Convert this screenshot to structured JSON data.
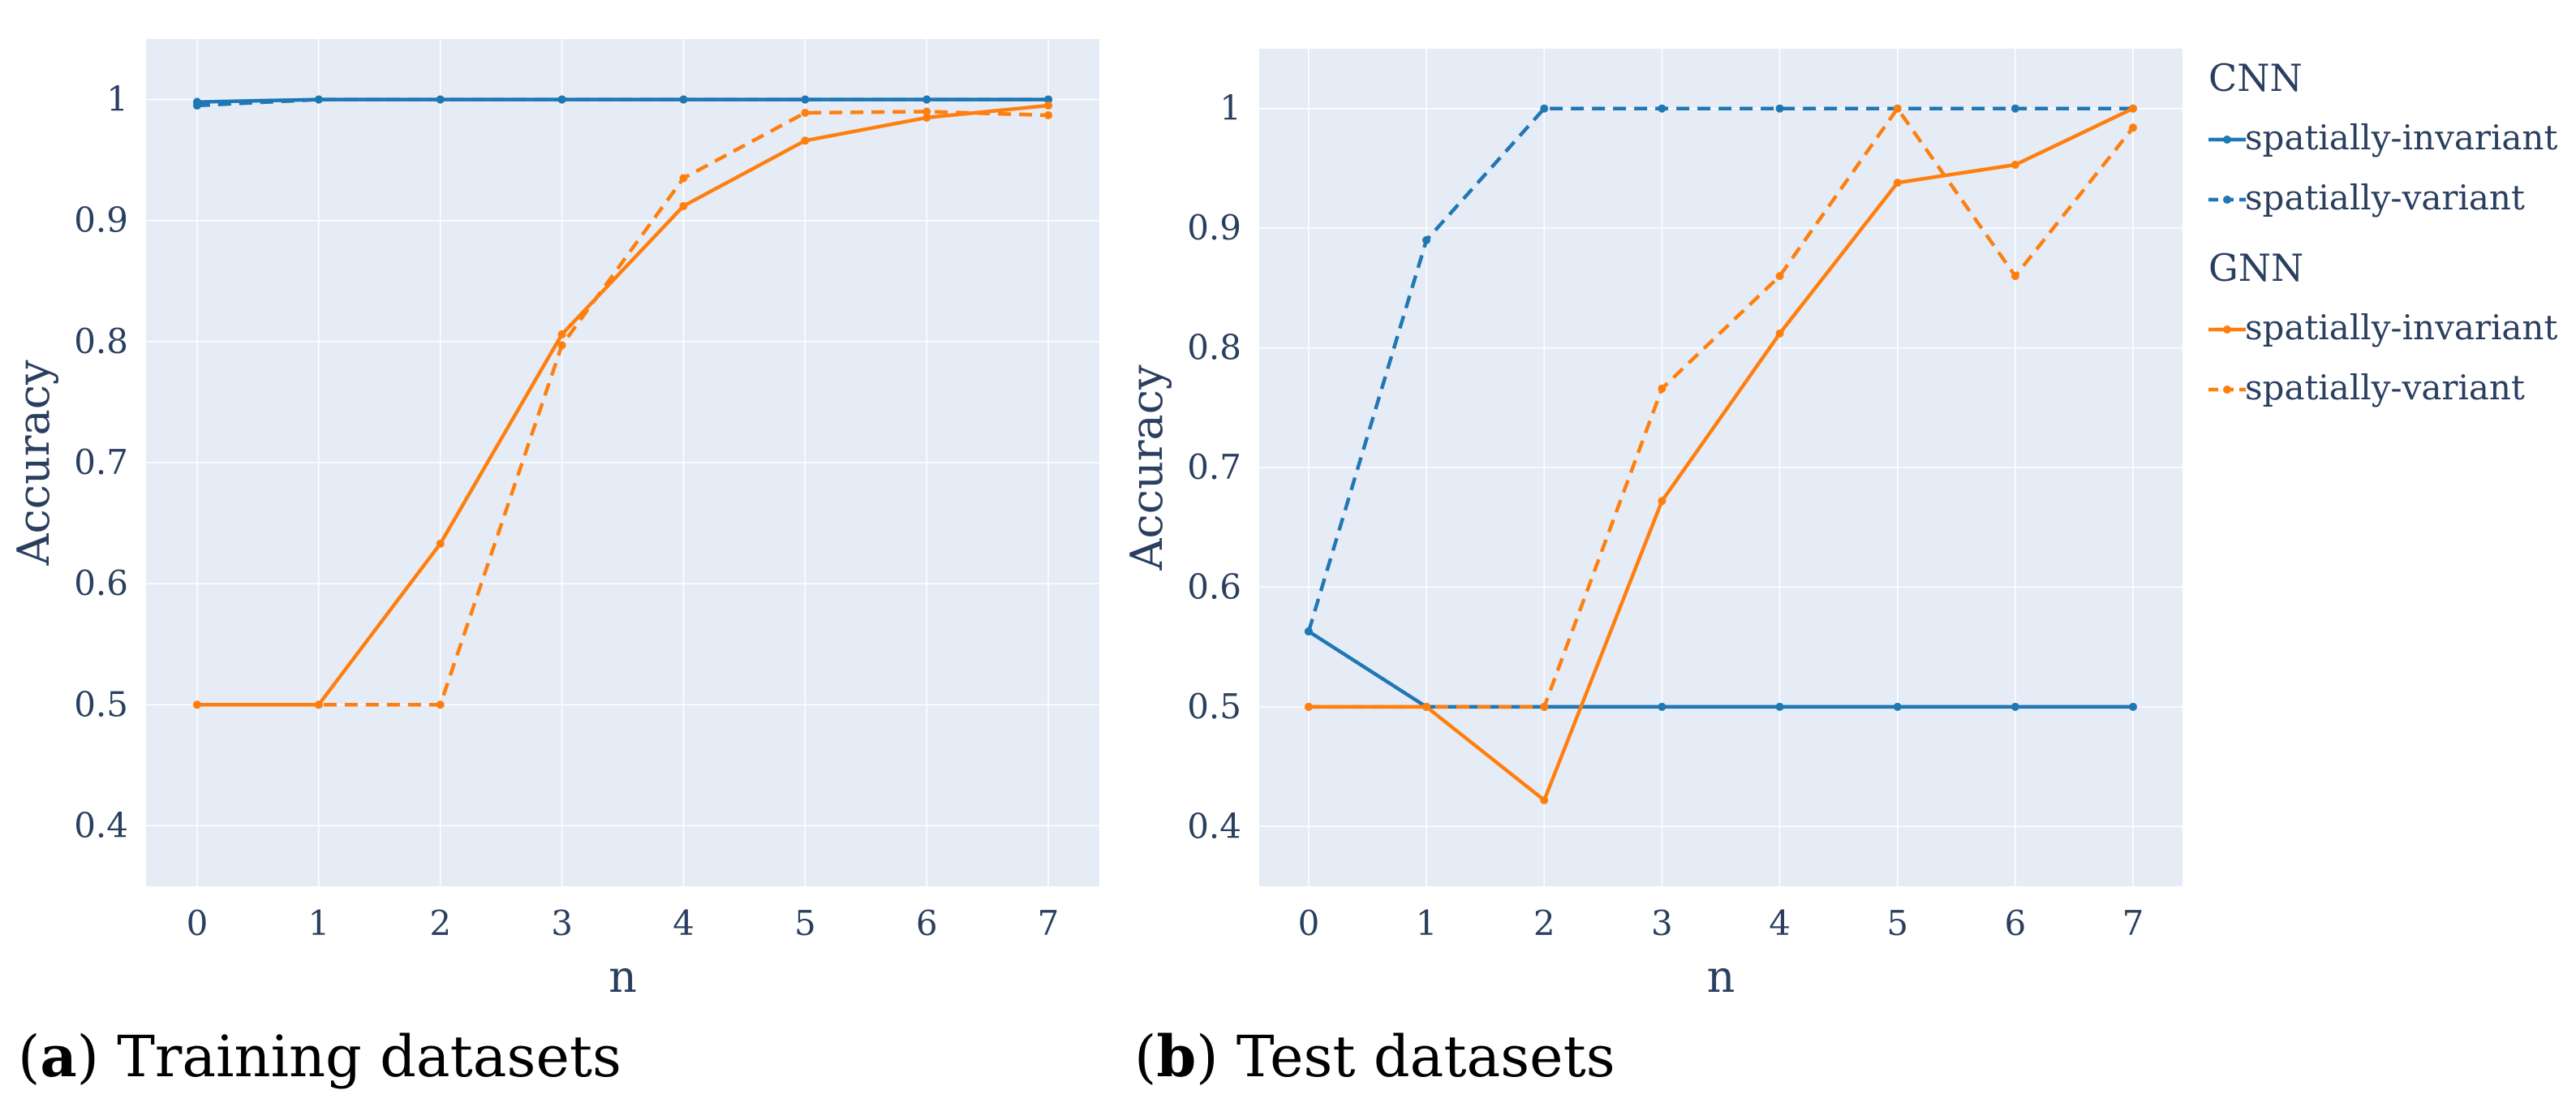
{
  "colors": {
    "cnn": "#1f77b4",
    "gnn": "#ff7f0e",
    "plot_bg": "#e5ecf6",
    "grid": "#ffffff",
    "text": "#2a3f5f"
  },
  "captions": [
    {
      "letter": "a",
      "text": " Training datasets"
    },
    {
      "letter": "b",
      "text": " Test datasets"
    }
  ],
  "legend": {
    "groups": [
      {
        "title": "CNN",
        "items": [
          {
            "label": "spatially-invariant",
            "color": "#1f77b4",
            "dash": false
          },
          {
            "label": "spatially-variant",
            "color": "#1f77b4",
            "dash": true
          }
        ]
      },
      {
        "title": "GNN",
        "items": [
          {
            "label": "spatially-invariant",
            "color": "#ff7f0e",
            "dash": false
          },
          {
            "label": "spatially-variant",
            "color": "#ff7f0e",
            "dash": true
          }
        ]
      }
    ]
  },
  "chart_data": [
    {
      "type": "line",
      "title": "Training datasets",
      "xlabel": "n",
      "ylabel": "Accuracy",
      "x": [
        0,
        1,
        2,
        3,
        4,
        5,
        6,
        7
      ],
      "xticks": [
        "0",
        "1",
        "2",
        "3",
        "4",
        "5",
        "6",
        "7"
      ],
      "xlim": [
        -0.42,
        7.42
      ],
      "yticks": [
        "0.4",
        "0.5",
        "0.6",
        "0.7",
        "0.8",
        "0.9",
        "1"
      ],
      "ylim": [
        0.35,
        1.05
      ],
      "series": [
        {
          "name": "CNN spatially-invariant",
          "color": "#1f77b4",
          "dash": false,
          "values": [
            0.998,
            1.0,
            1.0,
            1.0,
            1.0,
            1.0,
            1.0,
            1.0
          ]
        },
        {
          "name": "CNN spatially-variant",
          "color": "#1f77b4",
          "dash": true,
          "values": [
            0.995,
            1.0,
            1.0,
            1.0,
            1.0,
            1.0,
            1.0,
            1.0
          ]
        },
        {
          "name": "GNN spatially-invariant",
          "color": "#ff7f0e",
          "dash": false,
          "values": [
            0.5,
            0.5,
            0.633,
            0.806,
            0.912,
            0.966,
            0.985,
            0.995
          ]
        },
        {
          "name": "GNN spatially-variant",
          "color": "#ff7f0e",
          "dash": true,
          "values": [
            0.5,
            0.5,
            0.5,
            0.797,
            0.935,
            0.989,
            0.99,
            0.987
          ]
        }
      ]
    },
    {
      "type": "line",
      "title": "Test datasets",
      "xlabel": "n",
      "ylabel": "Accuracy",
      "x": [
        0,
        1,
        2,
        3,
        4,
        5,
        6,
        7
      ],
      "xticks": [
        "0",
        "1",
        "2",
        "3",
        "4",
        "5",
        "6",
        "7"
      ],
      "xlim": [
        -0.42,
        7.42
      ],
      "yticks": [
        "0.4",
        "0.5",
        "0.6",
        "0.7",
        "0.8",
        "0.9",
        "1"
      ],
      "ylim": [
        0.35,
        1.05
      ],
      "series": [
        {
          "name": "CNN spatially-invariant",
          "color": "#1f77b4",
          "dash": false,
          "values": [
            0.563,
            0.5,
            0.5,
            0.5,
            0.5,
            0.5,
            0.5,
            0.5
          ]
        },
        {
          "name": "CNN spatially-variant",
          "color": "#1f77b4",
          "dash": true,
          "values": [
            0.563,
            0.89,
            1.0,
            1.0,
            1.0,
            1.0,
            1.0,
            1.0
          ]
        },
        {
          "name": "GNN spatially-invariant",
          "color": "#ff7f0e",
          "dash": false,
          "values": [
            0.5,
            0.5,
            0.422,
            0.672,
            0.812,
            0.938,
            0.953,
            1.0
          ]
        },
        {
          "name": "GNN spatially-variant",
          "color": "#ff7f0e",
          "dash": true,
          "values": [
            0.5,
            0.5,
            0.5,
            0.766,
            0.86,
            1.0,
            0.86,
            0.984
          ]
        }
      ]
    }
  ]
}
